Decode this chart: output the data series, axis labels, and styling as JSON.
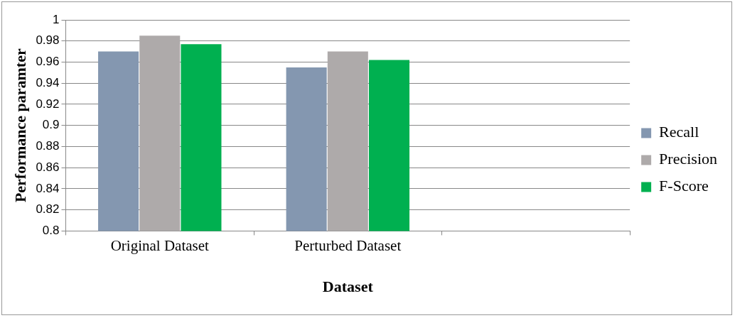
{
  "chart_data": {
    "type": "bar",
    "xlabel": "Dataset",
    "ylabel": "Performance paramter",
    "categories": [
      "Original Dataset",
      "Perturbed Dataset",
      null
    ],
    "series": [
      {
        "name": "Recall",
        "color": "#8497b0",
        "values": [
          0.97,
          0.955,
          null
        ]
      },
      {
        "name": "Precision",
        "color": "#aeaaaa",
        "values": [
          0.985,
          0.97,
          null
        ]
      },
      {
        "name": "F-Score",
        "color": "#00b050",
        "values": [
          0.977,
          0.962,
          null
        ]
      }
    ],
    "ylim": [
      0.8,
      1
    ],
    "yticks": [
      0.8,
      0.82,
      0.84,
      0.86,
      0.88,
      0.9,
      0.92,
      0.94,
      0.96,
      0.98,
      1
    ],
    "grid": "y",
    "legend": "right"
  }
}
